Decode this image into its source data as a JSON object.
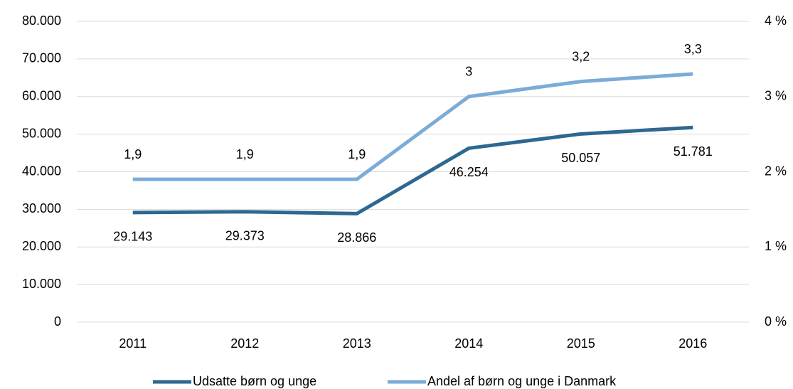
{
  "chart_data": {
    "type": "line",
    "categories": [
      "2011",
      "2012",
      "2013",
      "2014",
      "2015",
      "2016"
    ],
    "series": [
      {
        "name": "Udsatte børn og unge",
        "color": "#2d6890",
        "axis": "y",
        "values": [
          29143,
          29373,
          28866,
          46254,
          50057,
          51781
        ],
        "value_labels": [
          "29.143",
          "29.373",
          "28.866",
          "46.254",
          "50.057",
          "51.781"
        ]
      },
      {
        "name": "Andel af børn og unge i Danmark",
        "color": "#7bacd7",
        "axis": "y2",
        "values": [
          1.9,
          1.9,
          1.9,
          3,
          3.2,
          3.3
        ],
        "value_labels": [
          "1,9",
          "1,9",
          "1,9",
          "3",
          "3,2",
          "3,3"
        ]
      }
    ],
    "ylim": [
      0,
      80000
    ],
    "yticks": [
      0,
      {
        "value": 10000,
        "label": "10.000"
      },
      {
        "value": 20000,
        "label": "20.000"
      },
      {
        "value": 30000,
        "label": "30.000"
      },
      {
        "value": 40000,
        "label": "40.000"
      },
      {
        "value": 50000,
        "label": "50.000"
      },
      {
        "value": 60000,
        "label": "60.000"
      },
      {
        "value": 70000,
        "label": "70.000"
      },
      {
        "value": 80000,
        "label": "80.000"
      }
    ],
    "y2lim": [
      0,
      4
    ],
    "y2ticks": [
      {
        "value": 0,
        "label": "0 %"
      },
      {
        "value": 1,
        "label": "1 %"
      },
      {
        "value": 2,
        "label": "2 %"
      },
      {
        "value": 3,
        "label": "3 %"
      },
      {
        "value": 4,
        "label": "4 %"
      }
    ],
    "grid": true,
    "legend": "bottom"
  }
}
